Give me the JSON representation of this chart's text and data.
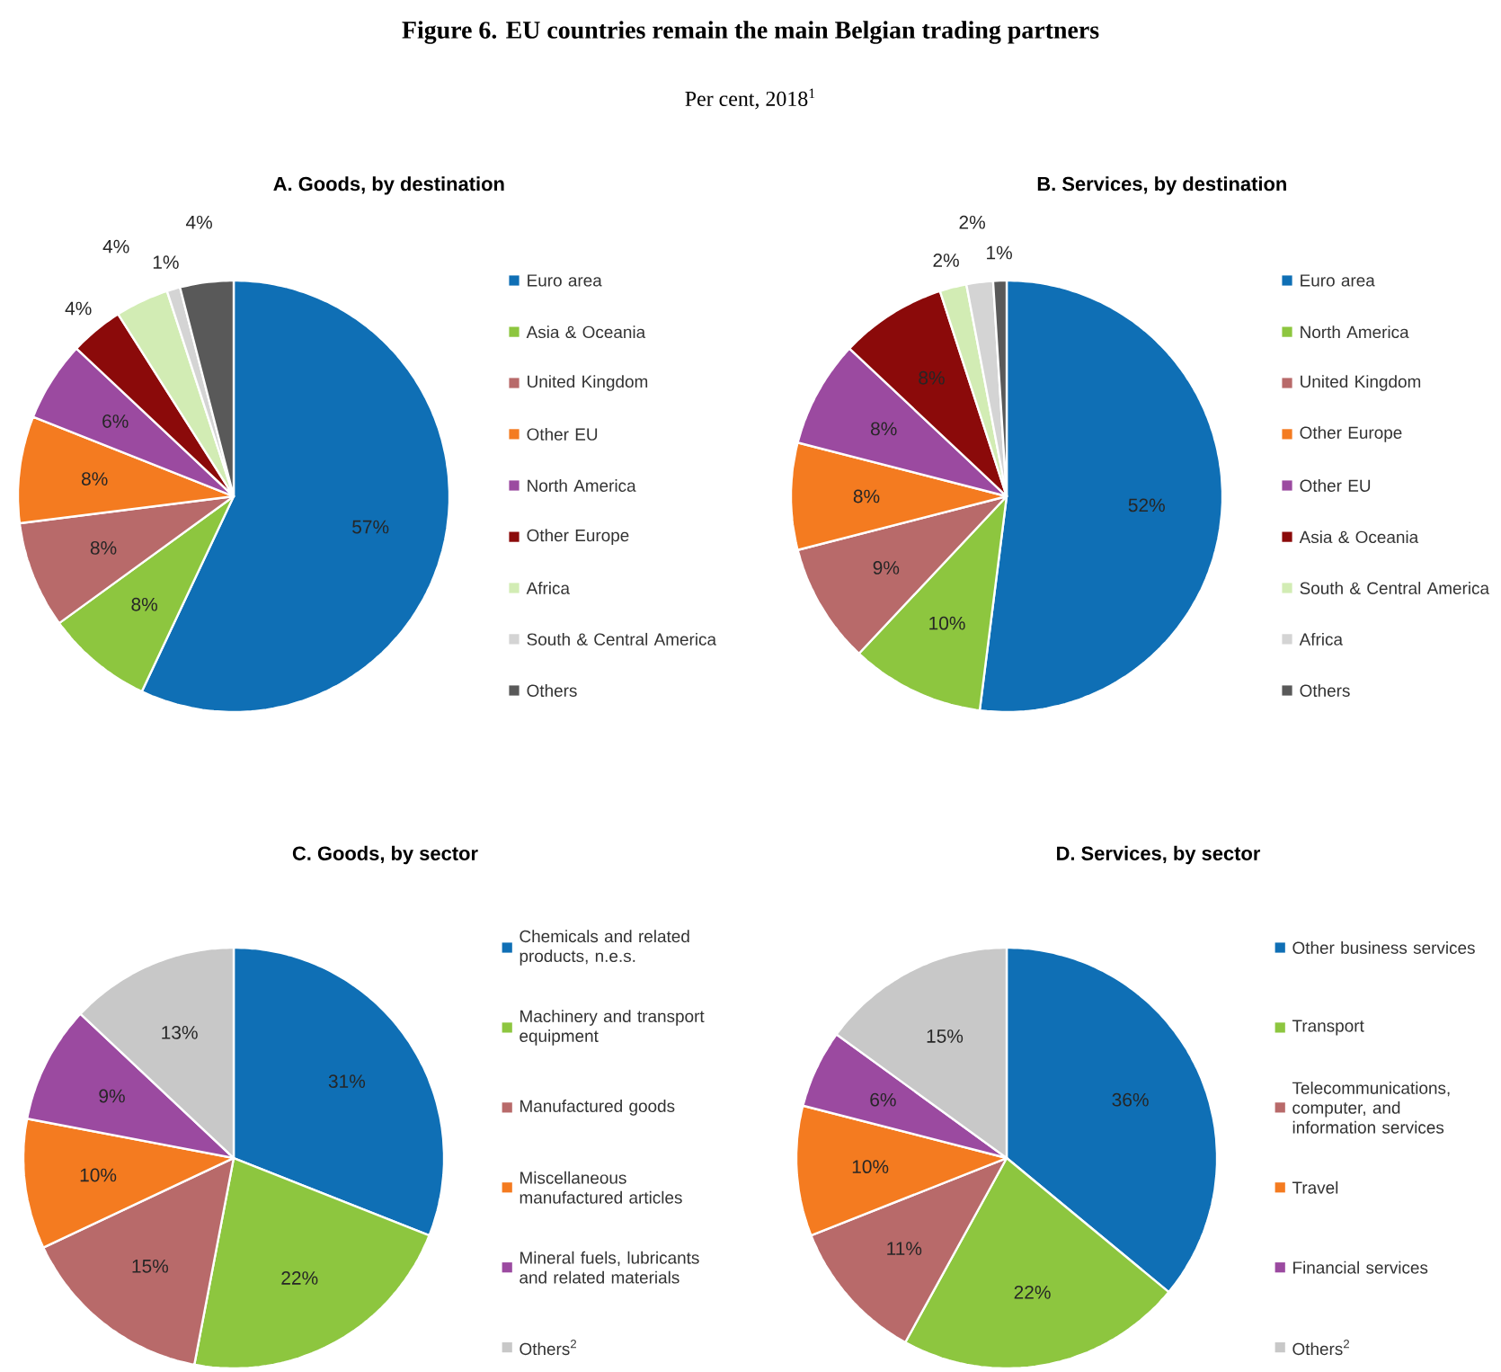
{
  "chart_data": [
    {
      "type": "other",
      "title": "Figure 6. EU countries remain the main Belgian trading partners",
      "subtitle": "Per cent, 2018$^{1}$"
    },
    {
      "type": "pie",
      "title": "A. Goods, by destination",
      "legend": "right",
      "categories": [
        "Euro area",
        "Asia & Oceania",
        "United Kingdom",
        "Other EU",
        "North America",
        "Other Europe",
        "Africa",
        "South & Central America",
        "Others"
      ],
      "values": [
        57,
        8,
        8,
        8,
        6,
        4,
        4,
        1,
        4
      ],
      "value_labels": [
        "57%",
        "8%",
        "8%",
        "8%",
        "6%",
        "4%",
        "4%",
        "1%",
        "4%"
      ],
      "colors": [
        "#0f6fb5",
        "#8dc63f",
        "#b86a6a",
        "#f47b20",
        "#9b4aa0",
        "#8b0a0a",
        "#d2ecb4",
        "#d4d4d4",
        "#595959"
      ]
    },
    {
      "type": "pie",
      "title": "B. Services, by destination",
      "legend": "right",
      "categories": [
        "Euro area",
        "North America",
        "United Kingdom",
        "Other Europe",
        "Other EU",
        "Asia & Oceania",
        "South & Central America",
        "Africa",
        "Others"
      ],
      "values": [
        52,
        10,
        9,
        8,
        8,
        8,
        2,
        2,
        1
      ],
      "value_labels": [
        "52%",
        "10%",
        "9%",
        "8%",
        "8%",
        "8%",
        "2%",
        "2%",
        "1%"
      ],
      "colors": [
        "#0f6fb5",
        "#8dc63f",
        "#b86a6a",
        "#f47b20",
        "#9b4aa0",
        "#8b0a0a",
        "#d2ecb4",
        "#d4d4d4",
        "#595959"
      ]
    },
    {
      "type": "pie",
      "title": "C. Goods, by sector",
      "legend": "right",
      "categories": [
        "Chemicals and related products, n.e.s.",
        "Machinery and transport equipment",
        "Manufactured goods",
        "Miscellaneous manufactured articles",
        "Mineral fuels, lubricants and related materials",
        "Others$^{2}$"
      ],
      "values": [
        31,
        22,
        15,
        10,
        9,
        13
      ],
      "value_labels": [
        "31%",
        "22%",
        "15%",
        "10%",
        "9%",
        "13%"
      ],
      "colors": [
        "#0f6fb5",
        "#8dc63f",
        "#b86a6a",
        "#f47b20",
        "#9b4aa0",
        "#c8c8c8"
      ]
    },
    {
      "type": "pie",
      "title": "D. Services, by sector",
      "legend": "right",
      "categories": [
        "Other business services",
        "Transport",
        "Telecommunications, computer, and information services",
        "Travel",
        "Financial services",
        "Others$^{2}$"
      ],
      "values": [
        36,
        22,
        11,
        10,
        6,
        15
      ],
      "value_labels": [
        "36%",
        "22%",
        "11%",
        "10%",
        "6%",
        "15%"
      ],
      "colors": [
        "#0f6fb5",
        "#8dc63f",
        "#b86a6a",
        "#f47b20",
        "#9b4aa0",
        "#c8c8c8"
      ]
    }
  ]
}
